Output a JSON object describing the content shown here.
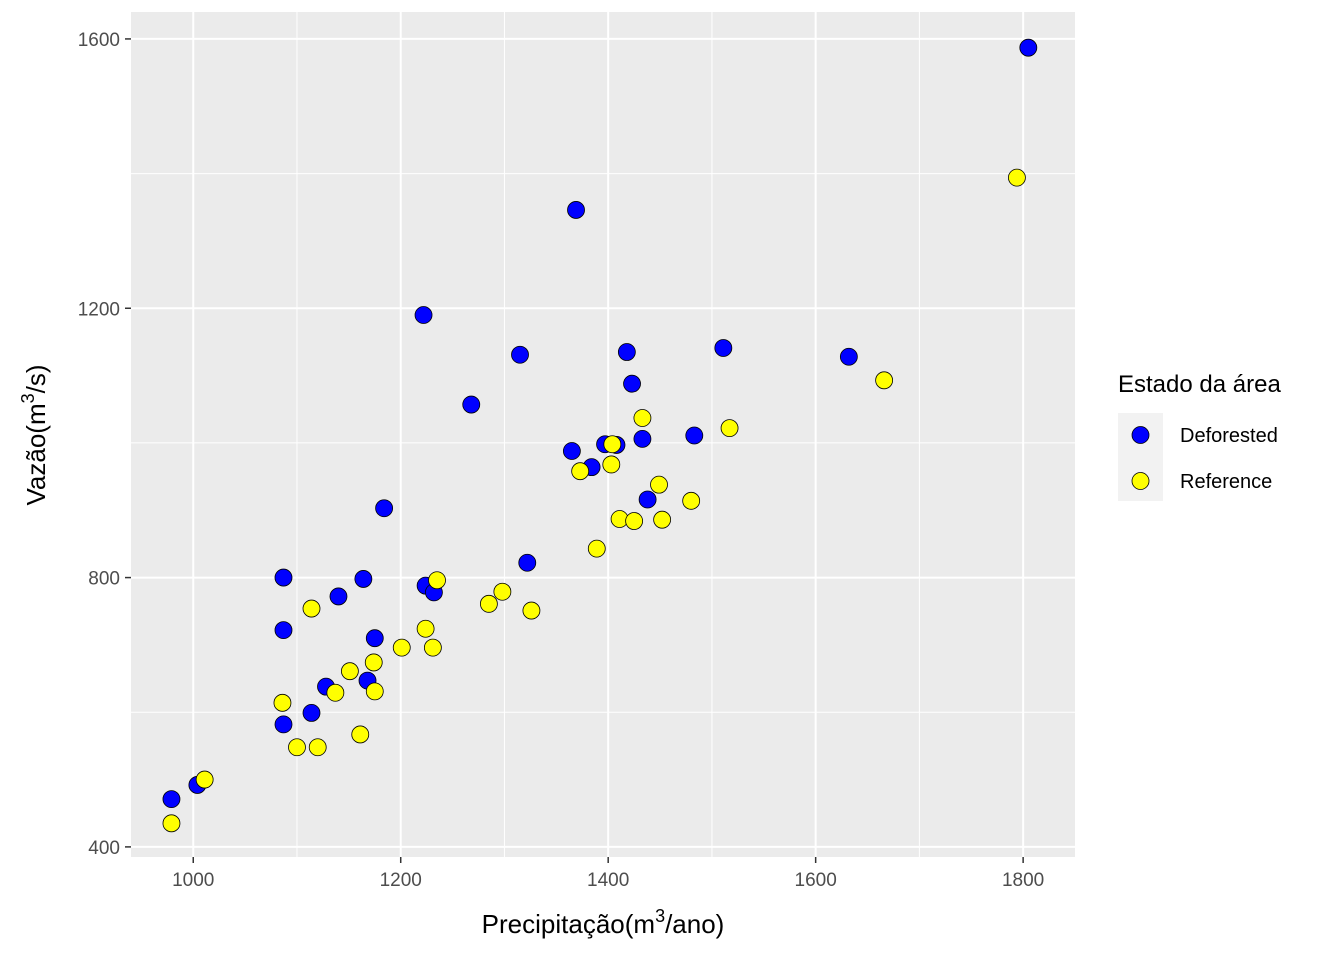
{
  "chart_data": {
    "type": "scatter",
    "xlabel": "Precipitação(m³/ano)",
    "ylabel": "Vazão(m³/s)",
    "xlabel_parts": {
      "pre": "Precipitação(m",
      "sup": "3",
      "post": "/ano)"
    },
    "ylabel_parts": {
      "pre": "Vazão(m",
      "sup": "3",
      "post": "/s)"
    },
    "xlim": [
      940,
      1850
    ],
    "ylim": [
      385,
      1640
    ],
    "x_ticks": [
      1000,
      1200,
      1400,
      1600,
      1800
    ],
    "y_ticks": [
      400,
      800,
      1200,
      1600
    ],
    "grid": true,
    "legend": {
      "title": "Estado da área",
      "position": "right"
    },
    "series": [
      {
        "name": "Deforested",
        "color": "#0000FF",
        "points": [
          [
            979,
            471
          ],
          [
            1004,
            492
          ],
          [
            1087,
            800
          ],
          [
            1087,
            722
          ],
          [
            1087,
            582
          ],
          [
            1114,
            599
          ],
          [
            1128,
            638
          ],
          [
            1140,
            772
          ],
          [
            1164,
            798
          ],
          [
            1168,
            647
          ],
          [
            1175,
            710
          ],
          [
            1184,
            903
          ],
          [
            1222,
            1190
          ],
          [
            1224,
            788
          ],
          [
            1232,
            778
          ],
          [
            1268,
            1057
          ],
          [
            1315,
            1131
          ],
          [
            1322,
            822
          ],
          [
            1365,
            988
          ],
          [
            1369,
            1346
          ],
          [
            1384,
            964
          ],
          [
            1397,
            998
          ],
          [
            1408,
            997
          ],
          [
            1418,
            1135
          ],
          [
            1423,
            1088
          ],
          [
            1433,
            1006
          ],
          [
            1438,
            916
          ],
          [
            1483,
            1011
          ],
          [
            1511,
            1141
          ],
          [
            1632,
            1128
          ],
          [
            1805,
            1587
          ]
        ]
      },
      {
        "name": "Reference",
        "color": "#FFFF00",
        "points": [
          [
            979,
            435
          ],
          [
            1011,
            500
          ],
          [
            1086,
            614
          ],
          [
            1100,
            548
          ],
          [
            1114,
            754
          ],
          [
            1120,
            548
          ],
          [
            1137,
            629
          ],
          [
            1151,
            661
          ],
          [
            1161,
            567
          ],
          [
            1174,
            674
          ],
          [
            1175,
            631
          ],
          [
            1201,
            696
          ],
          [
            1224,
            724
          ],
          [
            1231,
            696
          ],
          [
            1235,
            796
          ],
          [
            1285,
            761
          ],
          [
            1298,
            779
          ],
          [
            1326,
            751
          ],
          [
            1373,
            958
          ],
          [
            1389,
            843
          ],
          [
            1403,
            968
          ],
          [
            1404,
            998
          ],
          [
            1411,
            887
          ],
          [
            1425,
            884
          ],
          [
            1433,
            1037
          ],
          [
            1449,
            938
          ],
          [
            1452,
            886
          ],
          [
            1480,
            914
          ],
          [
            1517,
            1022
          ],
          [
            1666,
            1093
          ],
          [
            1794,
            1394
          ]
        ]
      }
    ]
  }
}
